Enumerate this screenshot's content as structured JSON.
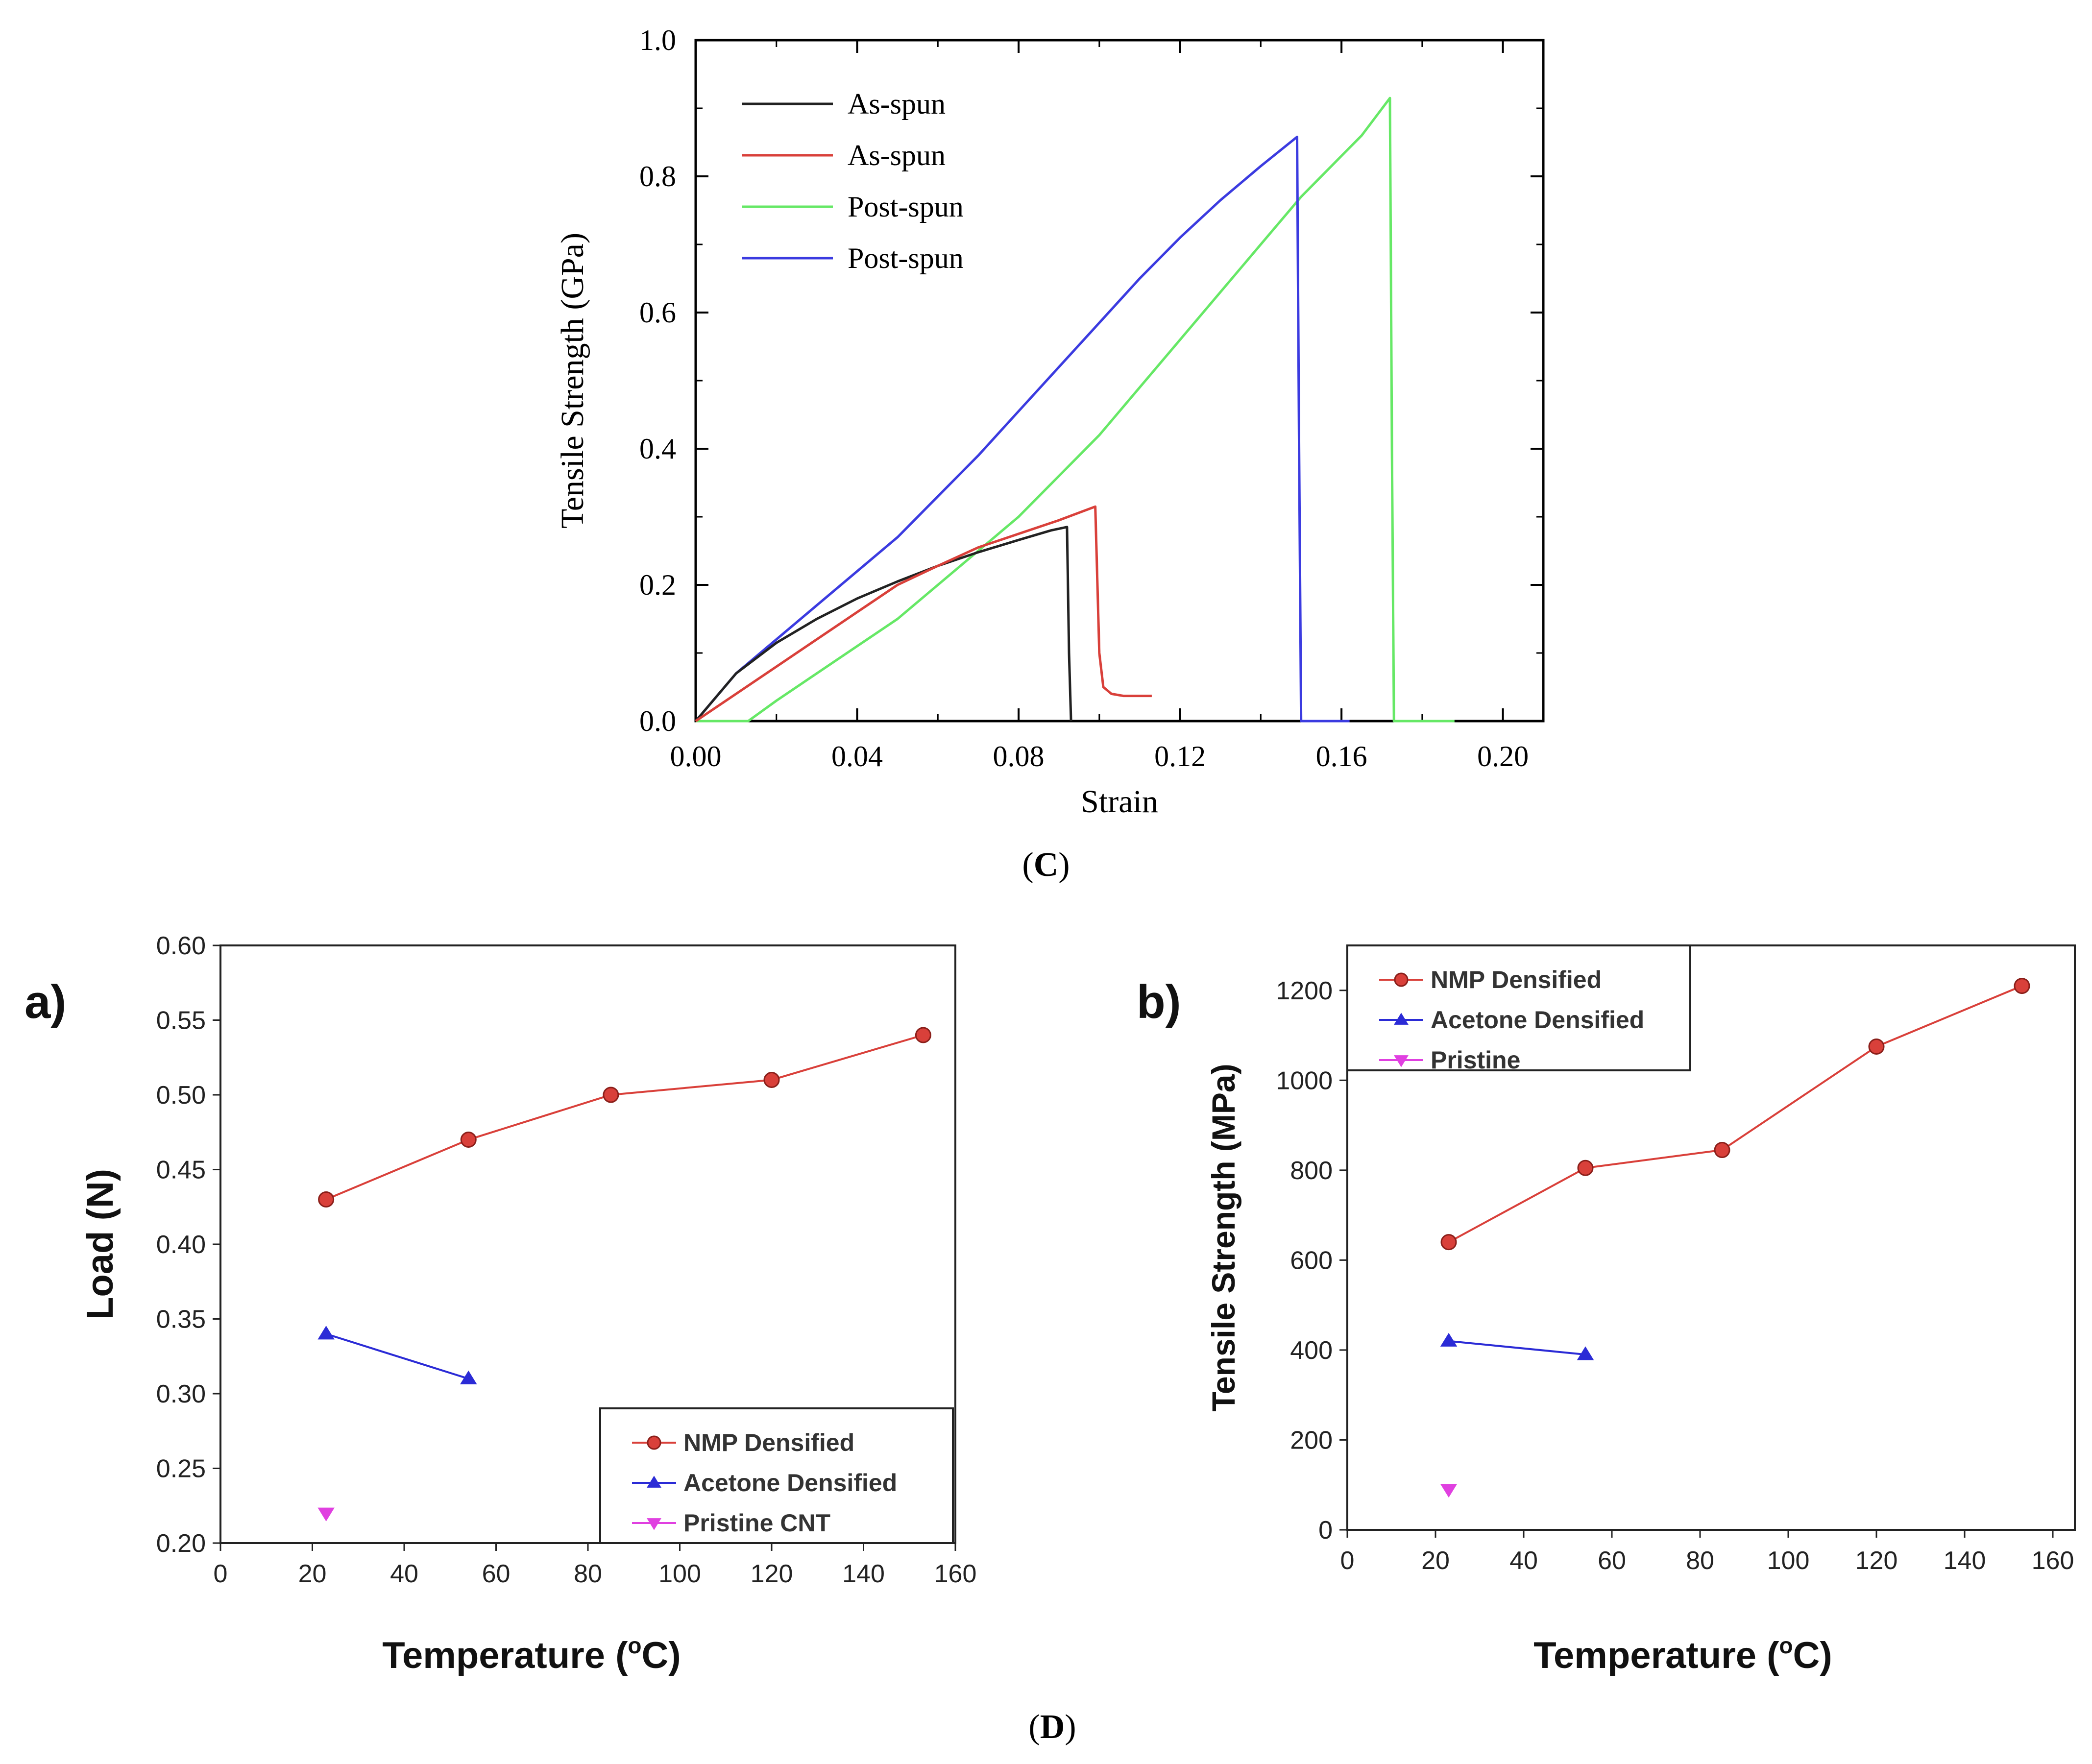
{
  "chart_data": [
    {
      "id": "C",
      "type": "line",
      "panel_caption": "(C)",
      "panel_caption_bold": "C",
      "xlabel": "Strain",
      "ylabel": "Tensile Strength (GPa)",
      "xlim": [
        0.0,
        0.21
      ],
      "ylim": [
        0.0,
        1.0
      ],
      "xticks": [
        0.0,
        0.04,
        0.08,
        0.12,
        0.16,
        0.2
      ],
      "xtick_labels": [
        "0.00",
        "0.04",
        "0.08",
        "0.12",
        "0.16",
        "0.20"
      ],
      "yticks": [
        0.0,
        0.2,
        0.4,
        0.6,
        0.8,
        1.0
      ],
      "ytick_labels": [
        "0.0",
        "0.2",
        "0.4",
        "0.6",
        "0.8",
        "1.0"
      ],
      "legend_position": "top-left",
      "series": [
        {
          "name": "As-spun",
          "color": "#222222",
          "x": [
            0.0,
            0.01,
            0.02,
            0.03,
            0.04,
            0.05,
            0.06,
            0.07,
            0.08,
            0.088,
            0.092,
            0.0925,
            0.093
          ],
          "y": [
            0.0,
            0.07,
            0.115,
            0.15,
            0.18,
            0.205,
            0.228,
            0.248,
            0.266,
            0.28,
            0.285,
            0.1,
            0.0
          ]
        },
        {
          "name": "As-spun",
          "color": "#d9403a",
          "x": [
            0.0,
            0.01,
            0.02,
            0.03,
            0.04,
            0.05,
            0.06,
            0.07,
            0.08,
            0.09,
            0.099,
            0.1,
            0.101,
            0.103,
            0.106,
            0.113
          ],
          "y": [
            0.0,
            0.04,
            0.08,
            0.12,
            0.16,
            0.2,
            0.228,
            0.255,
            0.275,
            0.295,
            0.315,
            0.1,
            0.05,
            0.04,
            0.037,
            0.037
          ]
        },
        {
          "name": "Post-spun",
          "color": "#66e866",
          "x": [
            0.0,
            0.013,
            0.02,
            0.03,
            0.04,
            0.05,
            0.06,
            0.07,
            0.08,
            0.09,
            0.1,
            0.11,
            0.12,
            0.13,
            0.14,
            0.15,
            0.16,
            0.165,
            0.172,
            0.1725,
            0.173,
            0.18,
            0.188
          ],
          "y": [
            0.0,
            0.0,
            0.03,
            0.07,
            0.11,
            0.15,
            0.2,
            0.25,
            0.3,
            0.36,
            0.42,
            0.49,
            0.56,
            0.63,
            0.7,
            0.77,
            0.83,
            0.86,
            0.915,
            0.4,
            0.0,
            0.0,
            0.0
          ]
        },
        {
          "name": "Post-spun",
          "color": "#3b3be0",
          "x": [
            0.0,
            0.01,
            0.02,
            0.03,
            0.04,
            0.05,
            0.06,
            0.07,
            0.08,
            0.09,
            0.1,
            0.11,
            0.12,
            0.13,
            0.14,
            0.149,
            0.1495,
            0.15,
            0.155,
            0.162
          ],
          "y": [
            0.0,
            0.07,
            0.12,
            0.17,
            0.22,
            0.27,
            0.33,
            0.39,
            0.455,
            0.52,
            0.585,
            0.65,
            0.71,
            0.765,
            0.815,
            0.858,
            0.4,
            0.0,
            0.0,
            0.0
          ]
        }
      ]
    },
    {
      "id": "D-a",
      "type": "line",
      "panel_letter": "a)",
      "xlabel_main": "Temperature (",
      "xlabel_sup": "o",
      "xlabel_end": "C)",
      "ylabel": "Load (N)",
      "xlim": [
        0,
        160
      ],
      "ylim": [
        0.2,
        0.6
      ],
      "xticks": [
        0,
        20,
        40,
        60,
        80,
        100,
        120,
        140,
        160
      ],
      "xtick_labels": [
        "0",
        "20",
        "40",
        "60",
        "80",
        "100",
        "120",
        "140",
        "160"
      ],
      "yticks": [
        0.2,
        0.25,
        0.3,
        0.35,
        0.4,
        0.45,
        0.5,
        0.55,
        0.6
      ],
      "ytick_labels": [
        "0.20",
        "0.25",
        "0.30",
        "0.35",
        "0.40",
        "0.45",
        "0.50",
        "0.55",
        "0.60"
      ],
      "legend_position": "bottom-right",
      "series": [
        {
          "name": "NMP Densified",
          "color": "#d9403a",
          "marker": "circle",
          "x": [
            23,
            54,
            85,
            120,
            153
          ],
          "y": [
            0.43,
            0.47,
            0.5,
            0.51,
            0.54
          ]
        },
        {
          "name": "Acetone Densified",
          "color": "#2b2bd6",
          "marker": "triangle-up",
          "x": [
            23,
            54
          ],
          "y": [
            0.34,
            0.31
          ]
        },
        {
          "name": "Pristine CNT",
          "color": "#e040e0",
          "marker": "triangle-down",
          "x": [
            23
          ],
          "y": [
            0.22
          ]
        }
      ]
    },
    {
      "id": "D-b",
      "type": "line",
      "panel_letter": "b)",
      "panel_caption": "(D)",
      "panel_caption_bold": "D",
      "xlabel_main": "Temperature (",
      "xlabel_sup": "o",
      "xlabel_end": "C)",
      "ylabel": "Tensile Strength (MPa)",
      "xlim": [
        0,
        165
      ],
      "ylim": [
        0,
        1300
      ],
      "xticks": [
        0,
        20,
        40,
        60,
        80,
        100,
        120,
        140,
        160
      ],
      "xtick_labels": [
        "0",
        "20",
        "40",
        "60",
        "80",
        "100",
        "120",
        "140",
        "160"
      ],
      "yticks": [
        0,
        200,
        400,
        600,
        800,
        1000,
        1200
      ],
      "ytick_labels": [
        "0",
        "200",
        "400",
        "600",
        "800",
        "1000",
        "1200"
      ],
      "legend_position": "top-left",
      "series": [
        {
          "name": "NMP Densified",
          "color": "#d9403a",
          "marker": "circle",
          "x": [
            23,
            54,
            85,
            120,
            153
          ],
          "y": [
            640,
            805,
            845,
            1075,
            1210
          ]
        },
        {
          "name": "Acetone Densified",
          "color": "#2b2bd6",
          "marker": "triangle-up",
          "x": [
            23,
            54
          ],
          "y": [
            420,
            390
          ]
        },
        {
          "name": "Pristine",
          "color": "#e040e0",
          "marker": "triangle-down",
          "x": [
            23
          ],
          "y": [
            90
          ]
        }
      ]
    }
  ]
}
